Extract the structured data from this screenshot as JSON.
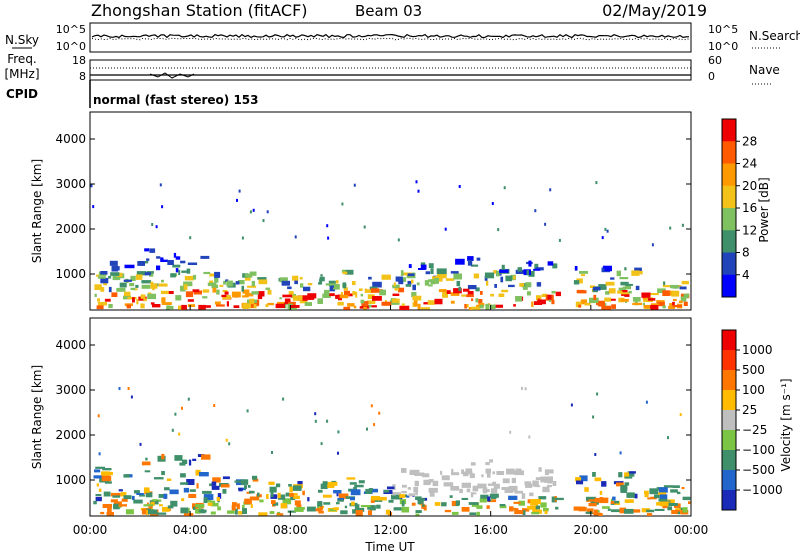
{
  "header": {
    "station": "Zhongshan Station (fitACF)",
    "beam": "Beam 03",
    "date": "02/May/2019",
    "cpid_text": "normal (fast stereo) 153"
  },
  "side_labels": {
    "nsky": "N.Sky",
    "freq_line1": "Freq.",
    "freq_line2": "[MHz]",
    "cpid": "CPID",
    "nsearch": "N.Search",
    "nave": "Nave"
  },
  "chart_data": [
    {
      "type": "line",
      "name": "noise-panel",
      "left_ticks": [
        "10^5",
        "10^0"
      ],
      "right_ticks": [
        "10^5",
        "10^0"
      ],
      "series": [
        {
          "name": "N.Sky",
          "style": "solid",
          "level": 0.55
        },
        {
          "name": "N.Search",
          "style": "dotted",
          "level": 0.45
        }
      ]
    },
    {
      "type": "line",
      "name": "frequency-panel",
      "left_ticks": [
        "18",
        "8"
      ],
      "right_ticks": [
        "60",
        "0"
      ],
      "series": [
        {
          "name": "Freq.",
          "style": "solid",
          "level": 0.2
        },
        {
          "name": "Nave",
          "style": "dotted",
          "level": 0.65
        }
      ]
    },
    {
      "type": "heatmap",
      "name": "power",
      "xlabel": "",
      "ylabel": "Slant Range [km]",
      "yticks": [
        1000,
        2000,
        3000,
        4000
      ],
      "ylim": [
        200,
        4600
      ],
      "colorbar_label": "Power [dB]",
      "colorbar_ticks": [
        "4",
        "8",
        "12",
        "16",
        "20",
        "24",
        "28"
      ],
      "colors": [
        "#0000ff",
        "#2244bb",
        "#3e8f6a",
        "#7fc060",
        "#f2c219",
        "#ff9900",
        "#ff5a00",
        "#ee0000"
      ]
    },
    {
      "type": "heatmap",
      "name": "velocity",
      "xlabel": "Time UT",
      "ylabel": "Slant Range [km]",
      "xticks": [
        "00:00",
        "04:00",
        "08:00",
        "12:00",
        "16:00",
        "20:00",
        "00:00"
      ],
      "yticks": [
        1000,
        2000,
        3000,
        4000
      ],
      "ylim": [
        200,
        4600
      ],
      "colorbar_label": "Velocity [m s⁻¹]",
      "colorbar_ticks": [
        "1000",
        "500",
        "100",
        "25",
        "−25",
        "−100",
        "−500",
        "−1000"
      ],
      "colors": [
        "#1a2ab8",
        "#2266cc",
        "#3e8f6a",
        "#7cc444",
        "#bfbfbf",
        "#ffbb00",
        "#ff7700",
        "#ff3300",
        "#ee0000"
      ]
    }
  ]
}
